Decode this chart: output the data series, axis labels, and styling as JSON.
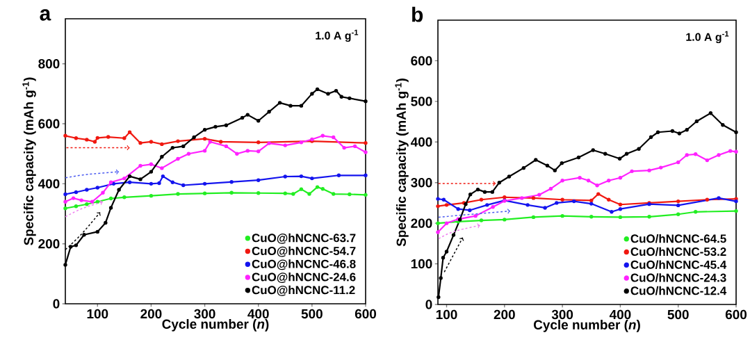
{
  "chart_data": [
    {
      "type": "line",
      "title": "a",
      "xlabel": "Cycle number (*n*)",
      "ylabel": "Specific capacity (mAh g$^{-1}$)",
      "annotations": [
        "1.0  A g$^{-1}$"
      ],
      "xlim": [
        40,
        600
      ],
      "ylim": [
        0,
        950
      ],
      "xticks": [
        100,
        200,
        300,
        400,
        500,
        600
      ],
      "yticks": [
        0,
        200,
        400,
        600,
        800
      ],
      "legend": "bottom right",
      "marker": "circle",
      "grid": false,
      "series": [
        {
          "name": "CuO@hNCNC-63.7",
          "color": "#22ee22",
          "x": [
            40,
            60,
            80,
            100,
            125,
            150,
            200,
            250,
            300,
            350,
            400,
            450,
            465,
            480,
            495,
            510,
            520,
            540,
            570,
            600
          ],
          "values": [
            318,
            325,
            332,
            340,
            351,
            355,
            360,
            366,
            368,
            370,
            369,
            368,
            366,
            382,
            366,
            389,
            383,
            366,
            365,
            363
          ]
        },
        {
          "name": "CuO@hNCNC-54.7",
          "color": "#f01810",
          "x": [
            40,
            60,
            80,
            95,
            100,
            120,
            150,
            160,
            180,
            200,
            220,
            250,
            300,
            330,
            400,
            500,
            600
          ],
          "values": [
            560,
            552,
            547,
            540,
            553,
            556,
            552,
            572,
            536,
            540,
            532,
            542,
            550,
            540,
            538,
            542,
            536
          ]
        },
        {
          "name": "CuO@hNCNC-46.8",
          "color": "#1414ee",
          "x": [
            40,
            60,
            80,
            100,
            130,
            160,
            200,
            215,
            222,
            240,
            260,
            300,
            350,
            400,
            450,
            480,
            500,
            550,
            600
          ],
          "values": [
            365,
            372,
            380,
            387,
            400,
            405,
            400,
            402,
            425,
            405,
            395,
            400,
            406,
            412,
            424,
            425,
            418,
            428,
            428
          ]
        },
        {
          "name": "CuO@hNCNC-24.6",
          "color": "#ff22ff",
          "x": [
            40,
            55,
            70,
            90,
            110,
            125,
            150,
            180,
            200,
            220,
            250,
            270,
            300,
            310,
            340,
            360,
            380,
            400,
            420,
            450,
            480,
            500,
            520,
            540,
            560,
            580,
            600
          ],
          "values": [
            340,
            352,
            345,
            340,
            370,
            405,
            418,
            460,
            465,
            452,
            483,
            500,
            510,
            540,
            525,
            500,
            510,
            508,
            535,
            528,
            538,
            548,
            560,
            555,
            520,
            525,
            505
          ]
        },
        {
          "name": "CuO@hNCNC-11.2",
          "color": "#000000",
          "x": [
            40,
            50,
            60,
            75,
            100,
            115,
            125,
            140,
            160,
            180,
            200,
            220,
            240,
            260,
            280,
            300,
            320,
            340,
            370,
            380,
            400,
            420,
            440,
            460,
            480,
            500,
            510,
            530,
            545,
            555,
            570,
            600
          ],
          "values": [
            130,
            190,
            195,
            230,
            240,
            270,
            320,
            380,
            425,
            415,
            440,
            490,
            520,
            525,
            555,
            580,
            590,
            595,
            620,
            630,
            610,
            640,
            670,
            660,
            660,
            700,
            715,
            700,
            710,
            690,
            685,
            675
          ]
        }
      ]
    },
    {
      "type": "line",
      "title": "b",
      "xlabel": "Cycle number (*n*)",
      "ylabel": "Specific capacity (mAh g$^{-1}$)",
      "annotations": [
        "1.0  A g$^{-1}$"
      ],
      "xlim": [
        85,
        600
      ],
      "ylim": [
        0,
        700
      ],
      "xticks": [
        100,
        200,
        300,
        400,
        500,
        600
      ],
      "yticks": [
        0,
        100,
        200,
        300,
        400,
        500,
        600
      ],
      "legend": "bottom right",
      "marker": "circle",
      "grid": false,
      "series": [
        {
          "name": "CuO/hNCNC-64.5",
          "color": "#22ee22",
          "x": [
            85,
            120,
            160,
            200,
            250,
            300,
            350,
            400,
            450,
            500,
            530,
            600
          ],
          "values": [
            200,
            204,
            207,
            209,
            215,
            218,
            216,
            215,
            216,
            222,
            228,
            230
          ]
        },
        {
          "name": "CuO/hNCNC-53.2",
          "color": "#f01810",
          "x": [
            85,
            100,
            130,
            160,
            200,
            250,
            300,
            350,
            362,
            380,
            400,
            450,
            500,
            550,
            600
          ],
          "values": [
            242,
            245,
            250,
            258,
            264,
            262,
            258,
            256,
            272,
            258,
            246,
            250,
            254,
            258,
            260
          ]
        },
        {
          "name": "CuO/hNCNC-45.4",
          "color": "#1414ee",
          "x": [
            85,
            95,
            120,
            140,
            170,
            200,
            240,
            270,
            290,
            320,
            350,
            385,
            400,
            450,
            500,
            570,
            600
          ],
          "values": [
            260,
            258,
            235,
            232,
            245,
            256,
            245,
            238,
            250,
            254,
            248,
            228,
            235,
            247,
            244,
            262,
            254
          ]
        },
        {
          "name": "CuO/hNCNC-24.3",
          "color": "#ff22ff",
          "x": [
            85,
            100,
            120,
            150,
            180,
            200,
            230,
            260,
            280,
            300,
            330,
            345,
            360,
            380,
            400,
            420,
            450,
            470,
            500,
            515,
            530,
            550,
            570,
            590,
            600
          ],
          "values": [
            178,
            200,
            210,
            218,
            240,
            255,
            262,
            270,
            285,
            305,
            312,
            305,
            293,
            305,
            312,
            328,
            330,
            337,
            350,
            368,
            370,
            355,
            368,
            378,
            376
          ]
        },
        {
          "name": "CuO/hNCNC-12.4",
          "color": "#000000",
          "x": [
            86,
            90,
            94,
            100,
            112,
            123,
            133,
            141,
            154,
            166,
            179,
            191,
            208,
            233,
            254,
            274,
            287,
            299,
            328,
            353,
            374,
            399,
            411,
            432,
            453,
            465,
            490,
            502,
            515,
            532,
            556,
            577,
            600
          ],
          "values": [
            18,
            65,
            115,
            130,
            171,
            209,
            247,
            271,
            283,
            277,
            277,
            300,
            315,
            336,
            356,
            342,
            330,
            348,
            362,
            380,
            371,
            359,
            371,
            383,
            412,
            424,
            427,
            421,
            430,
            451,
            471,
            442,
            424
          ]
        }
      ]
    }
  ]
}
